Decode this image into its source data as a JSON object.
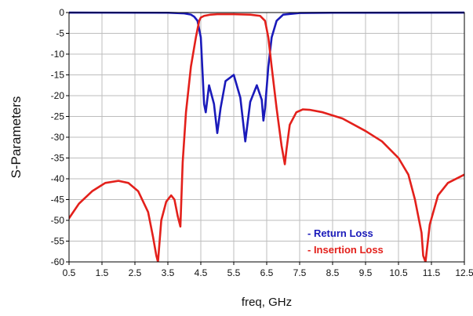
{
  "chart_data": {
    "type": "line",
    "title": "",
    "xlabel": "freq, GHz",
    "ylabel": "S-Parameters",
    "xlim": [
      0.5,
      12.5
    ],
    "ylim": [
      -60,
      0
    ],
    "grid": true,
    "legend_position": "bottom-right",
    "x_ticks": [
      "0.5",
      "1.5",
      "2.5",
      "3.5",
      "4.5",
      "5.5",
      "6.5",
      "7.5",
      "8.5",
      "9.5",
      "10.5",
      "11.5",
      "12.5"
    ],
    "y_ticks": [
      "0",
      "-5",
      "-10",
      "-15",
      "-20",
      "-25",
      "-30",
      "-35",
      "-40",
      "-45",
      "-50",
      "-55",
      "-60"
    ],
    "series": [
      {
        "name": "- Return Loss",
        "color": "#1a1aba",
        "x": [
          0.5,
          3.5,
          4.0,
          4.2,
          4.3,
          4.4,
          4.5,
          4.55,
          4.6,
          4.65,
          4.75,
          4.9,
          5.0,
          5.1,
          5.25,
          5.5,
          5.7,
          5.85,
          6.0,
          6.2,
          6.35,
          6.4,
          6.45,
          6.55,
          6.65,
          6.8,
          7.0,
          7.5,
          8.5,
          12.5
        ],
        "y": [
          -0.01,
          -0.05,
          -0.2,
          -0.5,
          -1,
          -2,
          -6,
          -14,
          -22,
          -24,
          -17.5,
          -22,
          -29,
          -23,
          -16.5,
          -15,
          -20.5,
          -31,
          -21.5,
          -17.5,
          -21,
          -26,
          -23,
          -13,
          -6,
          -2,
          -0.5,
          -0.1,
          -0.05,
          -0.02
        ]
      },
      {
        "name": "- Insertion Loss",
        "color": "#e3201b",
        "x": [
          0.5,
          0.8,
          1.2,
          1.6,
          2.0,
          2.3,
          2.6,
          2.9,
          3.05,
          3.15,
          3.2,
          3.3,
          3.45,
          3.6,
          3.7,
          3.8,
          3.88,
          3.95,
          4.05,
          4.2,
          4.35,
          4.45,
          4.5,
          4.6,
          4.8,
          5.0,
          5.5,
          6.0,
          6.3,
          6.45,
          6.55,
          6.65,
          6.8,
          6.95,
          7.05,
          7.1,
          7.2,
          7.4,
          7.6,
          7.8,
          8.2,
          8.8,
          9.5,
          10.0,
          10.5,
          10.8,
          11.0,
          11.2,
          11.25,
          11.32,
          11.45,
          11.7,
          12.0,
          12.5
        ],
        "y": [
          -49.5,
          -46,
          -43,
          -41,
          -40.5,
          -41,
          -43,
          -48,
          -54,
          -58.5,
          -60,
          -50,
          -45.5,
          -44,
          -45,
          -49,
          -51.5,
          -36,
          -24,
          -13,
          -6,
          -2,
          -1.2,
          -0.8,
          -0.5,
          -0.4,
          -0.4,
          -0.5,
          -0.8,
          -2,
          -6,
          -13,
          -23,
          -32,
          -36.5,
          -33,
          -27,
          -24,
          -23.3,
          -23.4,
          -24,
          -25.5,
          -28.5,
          -31,
          -35,
          -39,
          -45,
          -53,
          -58.5,
          -60,
          -51,
          -44,
          -41,
          -39
        ]
      }
    ]
  }
}
